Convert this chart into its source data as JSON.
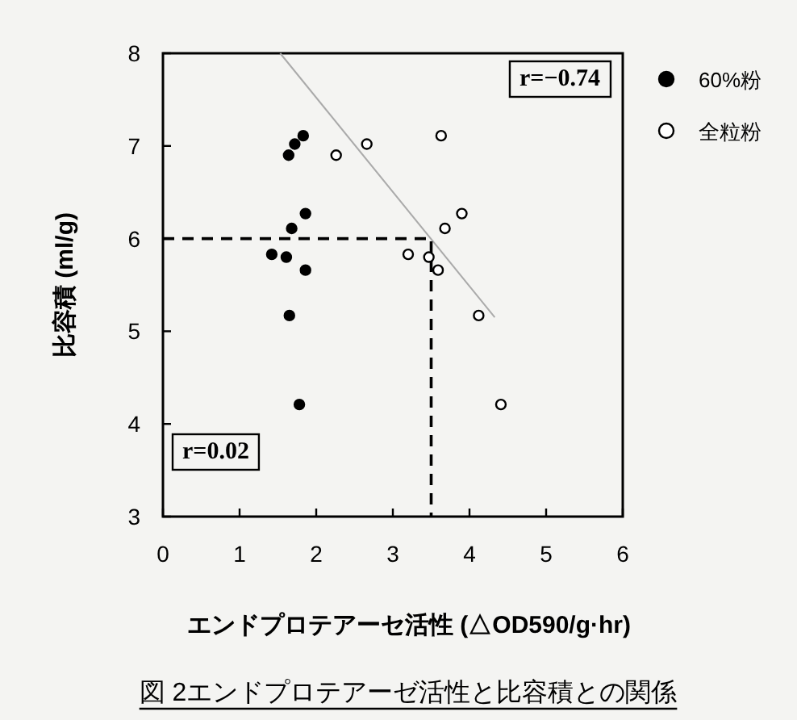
{
  "chart_data": {
    "type": "scatter",
    "title": "図 2エンドプロテアーゼ活性と比容積との関係",
    "xlabel": "エンドプロテアーセ活性 (△OD590/g·hr)",
    "ylabel": "比容積 (ml/g)",
    "xlim": [
      0,
      6
    ],
    "ylim": [
      3,
      8
    ],
    "xticks": [
      0,
      1,
      2,
      3,
      4,
      5,
      6
    ],
    "yticks": [
      3,
      4,
      5,
      6,
      7,
      8
    ],
    "grid": false,
    "legend": "top right",
    "marker": "circle",
    "annotations": [
      "r=−0.74",
      "r=0.02"
    ],
    "series": [
      {
        "name": "60%粉",
        "color": "#000000",
        "x": [
          1.83,
          1.72,
          1.64,
          1.86,
          1.68,
          1.42,
          1.61,
          1.86,
          1.65,
          1.78
        ],
        "values": [
          7.11,
          7.02,
          6.9,
          6.27,
          6.11,
          5.83,
          5.8,
          5.66,
          5.17,
          4.21
        ]
      },
      {
        "name": "全粒粉",
        "color": "#ffffff",
        "x": [
          2.26,
          2.66,
          3.63,
          3.9,
          3.68,
          3.2,
          3.47,
          3.59,
          4.12,
          4.41
        ],
        "values": [
          6.9,
          7.02,
          7.11,
          6.27,
          6.11,
          5.83,
          5.8,
          5.66,
          5.17,
          4.21
        ]
      },
      {
        "type": "line",
        "color": "#aaaaaa",
        "line_style": "solid",
        "marker": "none",
        "x": [
          1.53,
          4.33
        ],
        "values": [
          8,
          5.15
        ]
      },
      {
        "type": "line",
        "color": "#000000",
        "line_style": "dashed",
        "marker": "none",
        "x": [
          0,
          3.5,
          3.5
        ],
        "values": [
          6,
          6,
          3
        ]
      }
    ]
  }
}
